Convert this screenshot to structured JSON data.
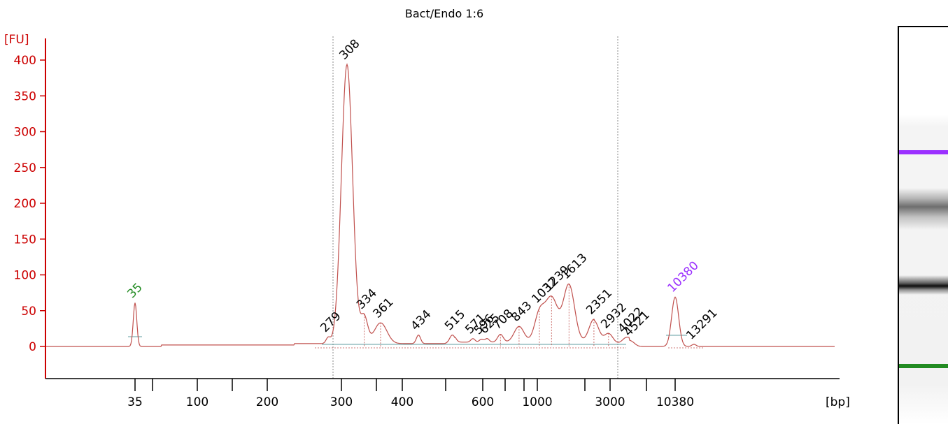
{
  "chart_data": {
    "type": "line",
    "title": "Bact/Endo 1:6",
    "ylabel": "[FU]",
    "xlabel": "[bp]",
    "ylim": [
      -45,
      415
    ],
    "yticks": [
      0,
      50,
      100,
      150,
      200,
      250,
      300,
      350,
      400
    ],
    "x_tick_labels": [
      "35",
      "100",
      "200",
      "300",
      "400",
      "600",
      "1000",
      "3000",
      "10380"
    ],
    "lower_marker": {
      "label": "35",
      "value": 35,
      "color": "#228b22"
    },
    "upper_marker": {
      "label": "10380",
      "value": 10380,
      "color": "#9b30ff"
    },
    "line_color": "#c0504d",
    "axis_color": "#cc0000",
    "peaks": [
      {
        "label": "35",
        "size_bp": 35,
        "fu": 61
      },
      {
        "label": "279",
        "size_bp": 279,
        "fu": 8
      },
      {
        "label": "308",
        "size_bp": 308,
        "fu": 390
      },
      {
        "label": "334",
        "size_bp": 334,
        "fu": 37
      },
      {
        "label": "361",
        "size_bp": 361,
        "fu": 29
      },
      {
        "label": "434",
        "size_bp": 434,
        "fu": 12
      },
      {
        "label": "515",
        "size_bp": 515,
        "fu": 12
      },
      {
        "label": "571",
        "size_bp": 571,
        "fu": 5
      },
      {
        "label": "596",
        "size_bp": 596,
        "fu": 4
      },
      {
        "label": "625",
        "size_bp": 625,
        "fu": 5
      },
      {
        "label": "708",
        "size_bp": 708,
        "fu": 11
      },
      {
        "label": "843",
        "size_bp": 843,
        "fu": 22
      },
      {
        "label": "1032",
        "size_bp": 1032,
        "fu": 38
      },
      {
        "label": "1239",
        "size_bp": 1239,
        "fu": 62
      },
      {
        "label": "1613",
        "size_bp": 1613,
        "fu": 80
      },
      {
        "label": "2351",
        "size_bp": 2351,
        "fu": 32
      },
      {
        "label": "2932",
        "size_bp": 2932,
        "fu": 14
      },
      {
        "label": "4022",
        "size_bp": 4022,
        "fu": 7
      },
      {
        "label": "4521",
        "size_bp": 4521,
        "fu": 6
      },
      {
        "label": "10380",
        "size_bp": 10380,
        "fu": 69
      },
      {
        "label": "13291",
        "size_bp": 13291,
        "fu": 3
      }
    ],
    "grid": false
  },
  "gel": {
    "upper_marker_color": "#9b30ff",
    "lower_marker_color": "#228b22",
    "band_color": "#000000"
  }
}
